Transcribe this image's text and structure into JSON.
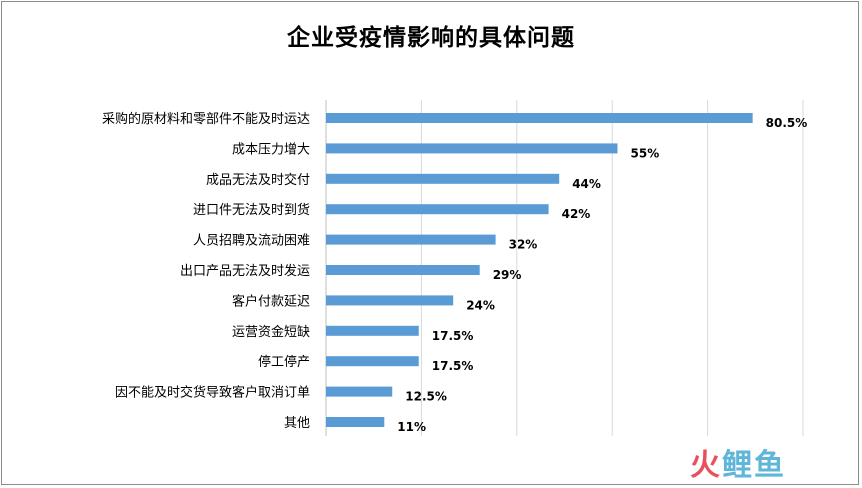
{
  "chart_data": {
    "type": "bar",
    "orientation": "horizontal",
    "title": "企业受疫情影响的具体问题",
    "categories": [
      "采购的原材料和零部件不能及时运达",
      "成本压力增大",
      "成品无法及时交付",
      "进口件无法及时到货",
      "人员招聘及流动困难",
      "出口产品无法及时发运",
      "客户付款延迟",
      "运营资金短缺",
      "停工停产",
      "因不能及时交货导致客户取消订单",
      "其他"
    ],
    "values": [
      80.5,
      55,
      44,
      42,
      32,
      29,
      24,
      17.5,
      17.5,
      12.5,
      11
    ],
    "value_labels": [
      "80.5%",
      "55%",
      "44%",
      "42%",
      "32%",
      "29%",
      "24%",
      "17.5%",
      "17.5%",
      "12.5%",
      "11%"
    ],
    "xlim": [
      0,
      90
    ],
    "grid": true,
    "bar_color": "#5b9bd5"
  },
  "watermark": {
    "part1": "火",
    "part2": "鲤",
    "part3": "鱼"
  }
}
